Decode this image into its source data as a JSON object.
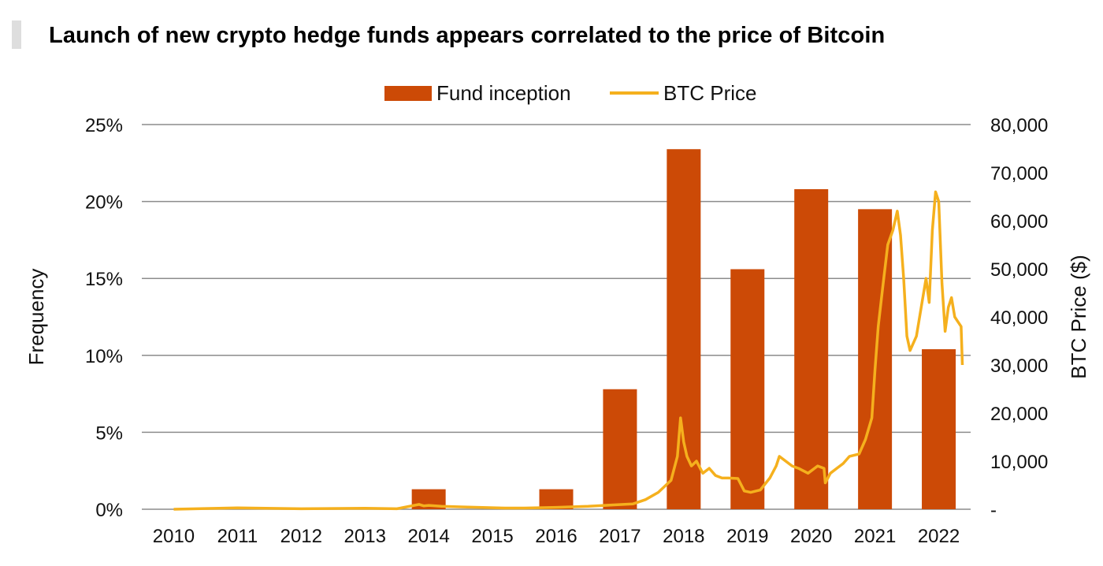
{
  "colors": {
    "bar": "#CC4A06",
    "line": "#F5B01D",
    "grid": "#8c8c8c",
    "title_bar": "#dedede"
  },
  "chart_data": {
    "type": "bar",
    "title": "Launch of new crypto hedge funds appears correlated to the price of Bitcoin",
    "xlabel": "",
    "ylabel": "Frequency",
    "y2label": "BTC Price ($)",
    "legend_position": "top-center",
    "grid": true,
    "categories": [
      "2010",
      "2011",
      "2012",
      "2013",
      "2014",
      "2015",
      "2016",
      "2017",
      "2018",
      "2019",
      "2020",
      "2021",
      "2022"
    ],
    "ylim": [
      0,
      25
    ],
    "y_ticks": [
      0,
      5,
      10,
      15,
      20,
      25
    ],
    "y_tick_labels": [
      "0%",
      "5%",
      "10%",
      "15%",
      "20%",
      "25%"
    ],
    "y2lim": [
      0,
      80000
    ],
    "y2_ticks": [
      0,
      10000,
      20000,
      30000,
      40000,
      50000,
      60000,
      70000,
      80000
    ],
    "y2_tick_labels": [
      "-",
      "10,000",
      "20,000",
      "30,000",
      "40,000",
      "50,000",
      "60,000",
      "70,000",
      "80,000"
    ],
    "series": [
      {
        "name": "Fund inception",
        "type": "bar",
        "axis": "left",
        "values": [
          0,
          0,
          0,
          0,
          1.3,
          0,
          1.3,
          7.8,
          23.4,
          15.6,
          20.8,
          19.5,
          10.4
        ]
      },
      {
        "name": "BTC Price",
        "type": "line",
        "axis": "right",
        "x": [
          2010.0,
          2011.0,
          2012.0,
          2013.0,
          2013.5,
          2013.85,
          2013.92,
          2014.0,
          2014.2,
          2014.5,
          2014.9,
          2015.2,
          2015.5,
          2016.0,
          2016.5,
          2016.9,
          2017.2,
          2017.4,
          2017.6,
          2017.8,
          2017.9,
          2017.95,
          2018.0,
          2018.05,
          2018.12,
          2018.2,
          2018.3,
          2018.4,
          2018.5,
          2018.6,
          2018.7,
          2018.85,
          2018.95,
          2019.05,
          2019.2,
          2019.35,
          2019.45,
          2019.5,
          2019.6,
          2019.7,
          2019.8,
          2019.95,
          2020.1,
          2020.2,
          2020.22,
          2020.3,
          2020.4,
          2020.5,
          2020.6,
          2020.75,
          2020.85,
          2020.95,
          2021.0,
          2021.05,
          2021.12,
          2021.2,
          2021.28,
          2021.35,
          2021.4,
          2021.45,
          2021.5,
          2021.55,
          2021.65,
          2021.75,
          2021.8,
          2021.85,
          2021.9,
          2021.95,
          2022.0,
          2022.05,
          2022.1,
          2022.15,
          2022.2,
          2022.25,
          2022.3,
          2022.35,
          2022.37
        ],
        "values": [
          0,
          300,
          100,
          200,
          100,
          1000,
          700,
          800,
          600,
          500,
          350,
          250,
          250,
          400,
          600,
          900,
          1100,
          2000,
          3500,
          6000,
          11000,
          19000,
          14000,
          11000,
          9000,
          10000,
          7500,
          8500,
          7000,
          6500,
          6500,
          6400,
          3800,
          3500,
          4000,
          6500,
          9000,
          11000,
          10000,
          9000,
          8500,
          7500,
          9000,
          8500,
          5500,
          7500,
          8500,
          9500,
          11000,
          11500,
          14500,
          19000,
          29000,
          38000,
          46000,
          55000,
          58000,
          62000,
          57000,
          48000,
          36000,
          33000,
          36000,
          44000,
          48000,
          43000,
          58000,
          66000,
          64000,
          47000,
          37000,
          42000,
          44000,
          40000,
          39000,
          38000,
          30000
        ]
      }
    ]
  }
}
